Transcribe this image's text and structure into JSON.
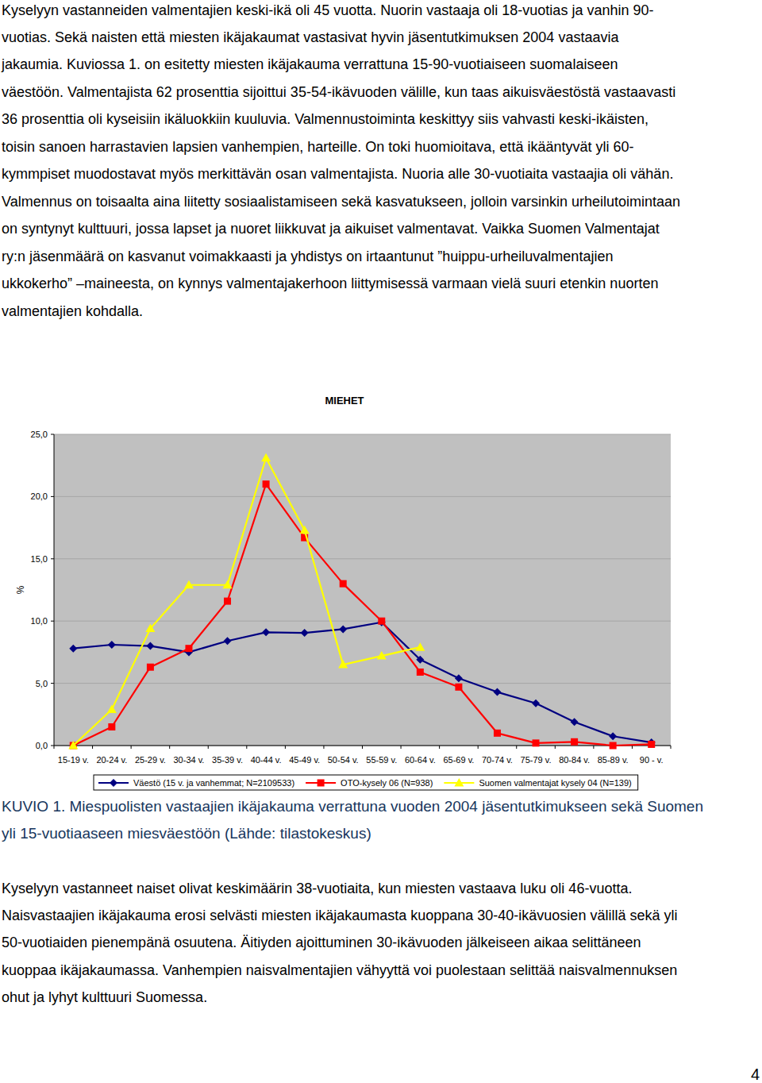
{
  "paragraphs": [
    [
      "Kyselyyn vastanneiden valmentajien keski-ikä oli 45 vuotta. Nuorin vastaaja oli 18-vuotias ja vanhin 90-",
      "vuotias. Sekä naisten että miesten ikäjakaumat vastasivat hyvin jäsentutkimuksen 2004 vastaavia",
      "jakaumia. Kuviossa 1. on esitetty miesten ikäjakauma verrattuna 15-90-vuotiaiseen suomalaiseen",
      "väestöön. Valmentajista 62 prosenttia sijoittui 35-54-ikävuoden välille, kun taas aikuisväestöstä vastaavasti",
      "36 prosenttia oli kyseisiin ikäluokkiin kuuluvia. Valmennustoiminta keskittyy siis vahvasti keski-ikäisten,",
      "toisin sanoen harrastavien lapsien vanhempien, harteille. On toki huomioitava, että ikääntyvät yli 60-",
      "kymmpiset muodostavat myös merkittävän osan valmentajista. Nuoria alle 30-vuotiaita vastaajia oli vähän.",
      "Valmennus on toisaalta aina liitetty sosiaalistamiseen sekä kasvatukseen, jolloin varsinkin urheilutoimintaan",
      "on syntynyt kulttuuri, jossa lapset ja nuoret liikkuvat ja aikuiset valmentavat. Vaikka Suomen Valmentajat",
      "ry:n jäsenmäärä on kasvanut voimakkaasti ja yhdistys on irtaantunut ”huippu-urheiluvalmentajien",
      "ukkokerho” –maineesta, on kynnys valmentajakerhoon liittymisessä varmaan vielä suuri etenkin nuorten",
      "valmentajien kohdalla."
    ],
    [
      "Kyselyyn vastanneet naiset olivat keskimäärin 38-vuotiaita, kun miesten vastaava luku oli 46-vuotta.",
      "Naisvastaajien ikäjakauma erosi selvästi miesten ikäjakaumasta kuoppana 30-40-ikävuosien välillä sekä yli",
      "50-vuotiaiden pienempänä osuutena. Äitiyden ajoittuminen 30-ikävuoden jälkeiseen aikaa selittäneen",
      "kuoppaa ikäjakaumassa. Vanhempien naisvalmentajien vähyyttä voi puolestaan selittää naisvalmennuksen",
      "ohut ja lyhyt kulttuuri Suomessa."
    ]
  ],
  "chart_data": {
    "type": "line",
    "title": "MIEHET",
    "y_label": "%",
    "categories": [
      "15-19 v.",
      "20-24 v.",
      "25-29 v.",
      "30-34 v.",
      "35-39 v.",
      "40-44 v.",
      "45-49 v.",
      "50-54 v.",
      "55-59 v.",
      "60-64 v.",
      "65-69 v.",
      "70-74 v.",
      "75-79 v.",
      "80-84 v.",
      "85-89 v.",
      "90 - v."
    ],
    "series": [
      {
        "name": "Väestö (15 v. ja vanhemmat; N=2109533)",
        "color": "#000080",
        "marker": "diamond",
        "values": [
          7.8,
          8.1,
          8.0,
          7.5,
          8.4,
          9.1,
          9.05,
          9.35,
          9.9,
          6.9,
          5.4,
          4.3,
          3.4,
          1.9,
          0.75,
          0.25
        ]
      },
      {
        "name": "OTO-kysely 06 (N=938)",
        "color": "#ff0000",
        "marker": "square",
        "values": [
          0.0,
          1.5,
          6.3,
          7.8,
          11.6,
          21.0,
          16.7,
          13.0,
          10.0,
          5.9,
          4.7,
          1.0,
          0.2,
          0.3,
          0.0,
          0.1
        ]
      },
      {
        "name": "Suomen valmentajat kysely 04 (N=139)",
        "color": "#ffff00",
        "marker": "triangle",
        "values": [
          0.0,
          2.9,
          9.4,
          12.9,
          12.9,
          23.1,
          17.3,
          6.5,
          7.2,
          7.9,
          null,
          null,
          null,
          null,
          null,
          null
        ]
      }
    ],
    "ylim": [
      0,
      25
    ],
    "yticks": [
      {
        "value": 0,
        "label": "0,0"
      },
      {
        "value": 5,
        "label": "5,0"
      },
      {
        "value": 10,
        "label": "10,0"
      },
      {
        "value": 15,
        "label": "15,0"
      },
      {
        "value": 20,
        "label": "20,0"
      },
      {
        "value": 25,
        "label": "25,0"
      }
    ],
    "grid": true,
    "legend": "bottom"
  },
  "caption": [
    "KUVIO 1. Miespuolisten vastaajien ikäjakauma verrattuna vuoden 2004 jäsentutkimukseen sekä Suomen",
    "yli 15-vuotiaaseen miesväestöön (Lähde: tilastokeskus)"
  ],
  "page_number": "4"
}
